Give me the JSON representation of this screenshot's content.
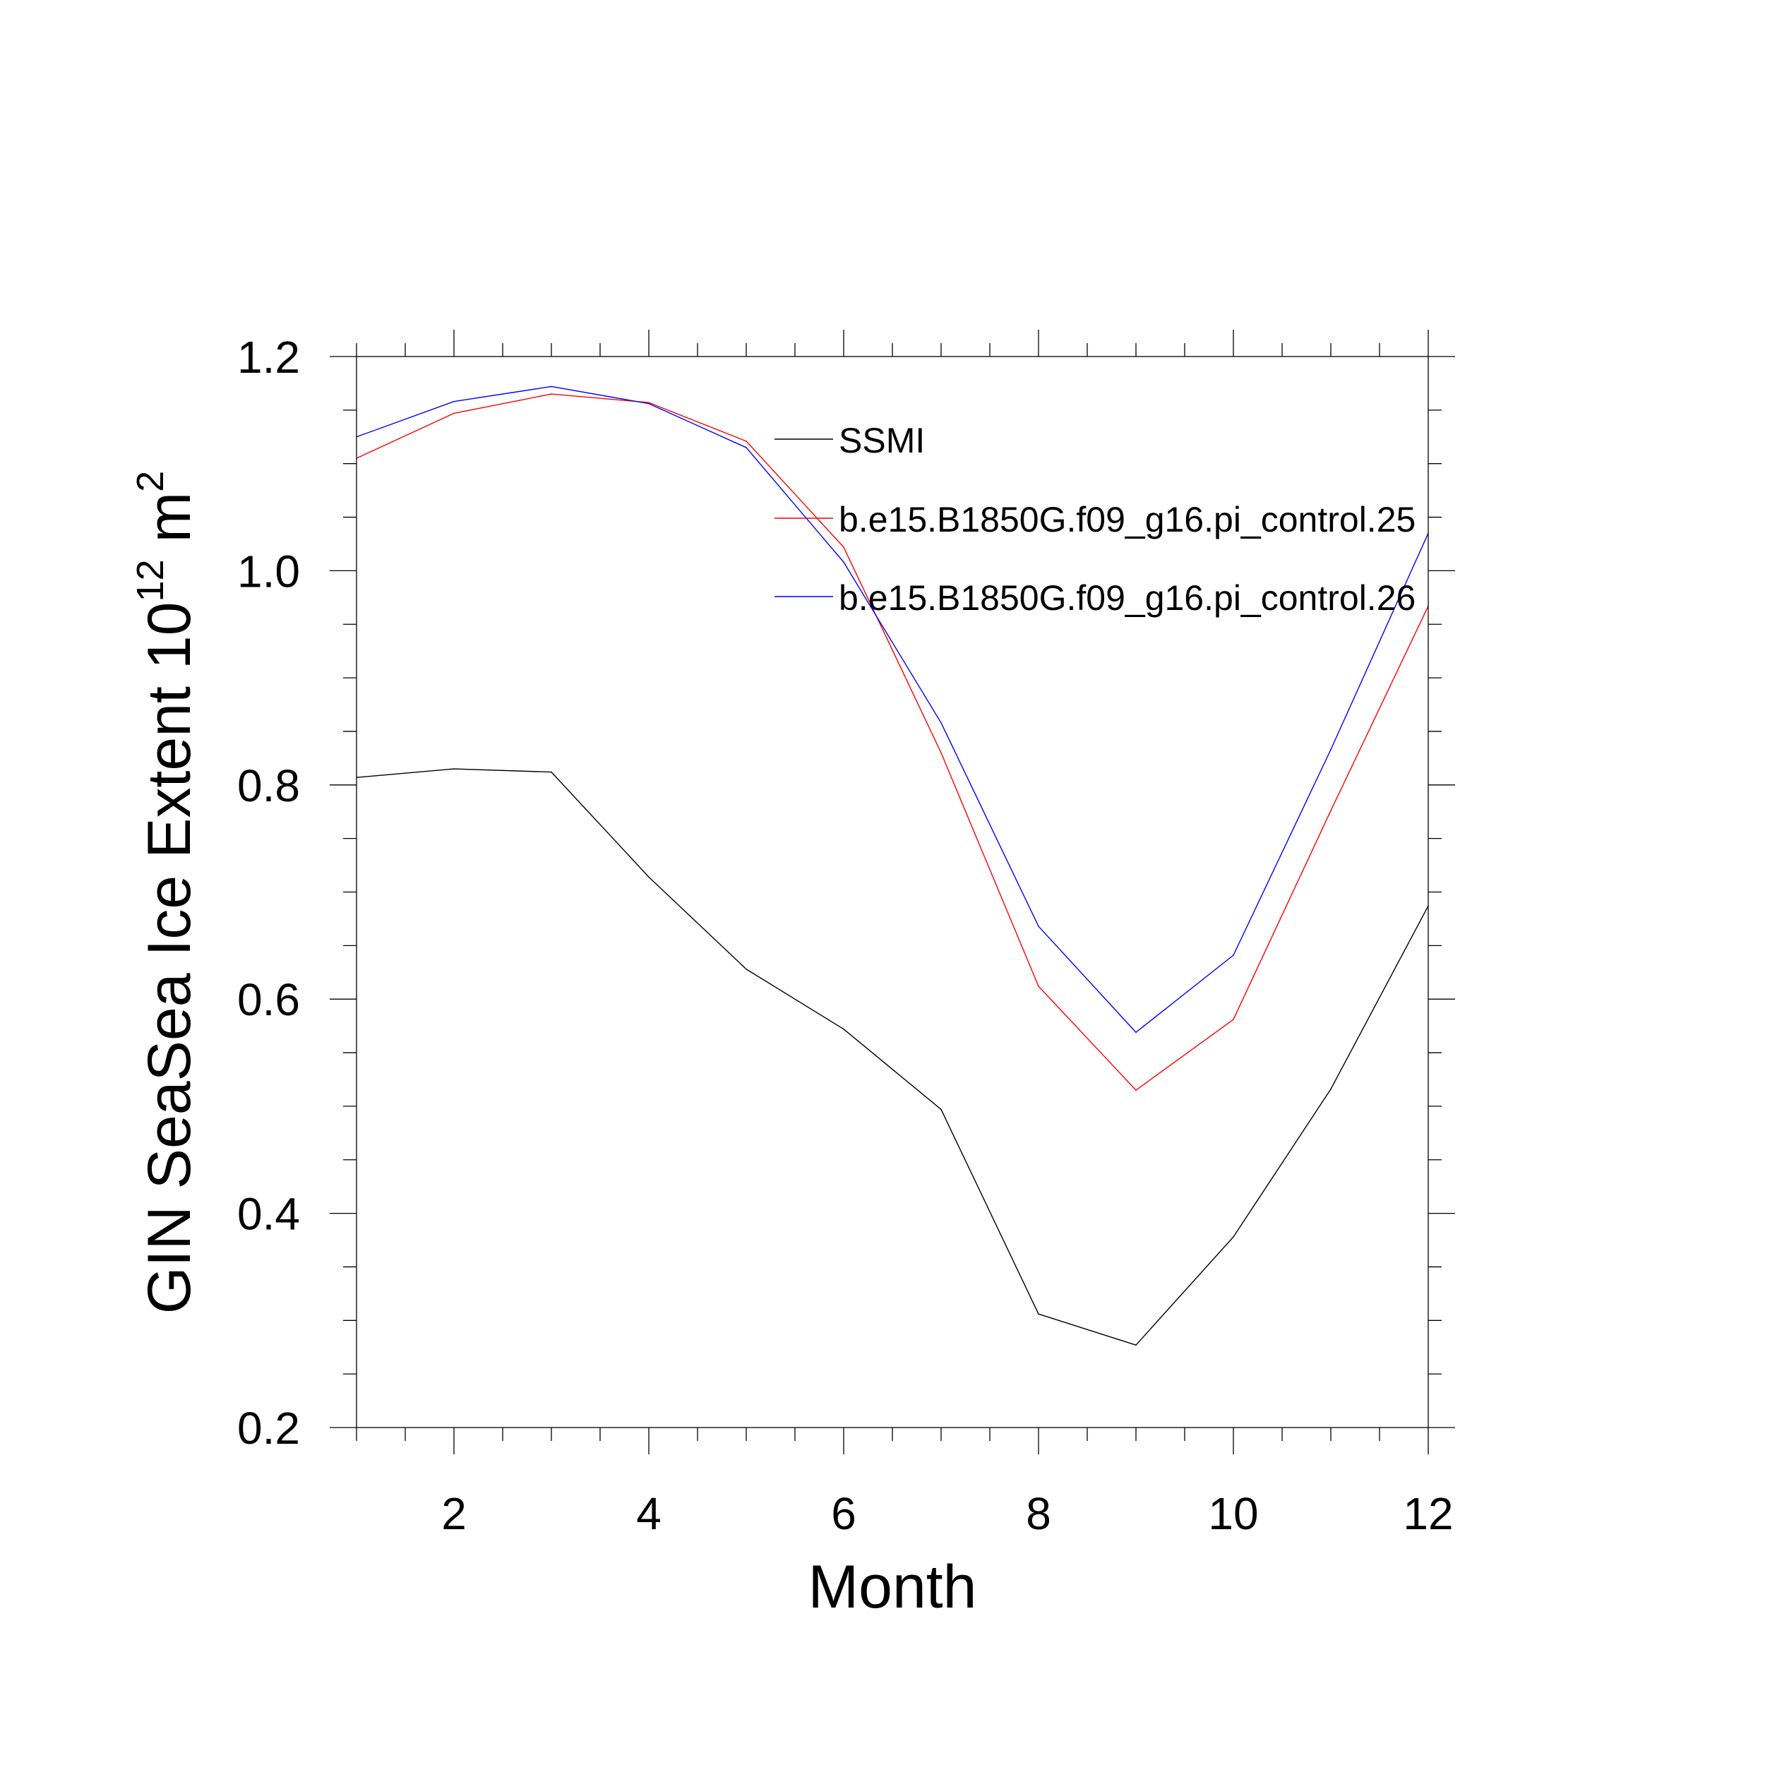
{
  "chart_data": {
    "type": "line",
    "xlabel": "Month",
    "ylabel": {
      "main": "GIN SeaSea Ice Extent 10",
      "sup1": "12",
      "mid": " m",
      "sup2": "2"
    },
    "xlim": [
      1,
      12
    ],
    "ylim": [
      0.2,
      1.2
    ],
    "xticks": [
      2,
      4,
      6,
      8,
      10,
      12
    ],
    "yticks": [
      0.2,
      0.4,
      0.6,
      0.8,
      1.0,
      1.2
    ],
    "ytick_labels": [
      "0.2",
      "0.4",
      "0.6",
      "0.8",
      "1.0",
      "1.2"
    ],
    "x": [
      1,
      2,
      3,
      4,
      5,
      6,
      7,
      8,
      9,
      10,
      11,
      12
    ],
    "grid": false,
    "legend_position": "top-right inside plot",
    "series": [
      {
        "name": "SSMI",
        "color": "#000000",
        "values": [
          0.807,
          0.815,
          0.812,
          0.714,
          0.628,
          0.572,
          0.497,
          0.306,
          0.277,
          0.378,
          0.516,
          0.687
        ]
      },
      {
        "name": "b.e15.B1850G.f09_g16.pi_control.25",
        "color": "#ff0000",
        "values": [
          1.105,
          1.147,
          1.165,
          1.157,
          1.121,
          1.022,
          0.83,
          0.612,
          0.515,
          0.581,
          0.776,
          0.967
        ]
      },
      {
        "name": "b.e15.B1850G.f09_g16.pi_control.26",
        "color": "#0000ff",
        "values": [
          1.125,
          1.158,
          1.172,
          1.156,
          1.115,
          1.008,
          0.858,
          0.668,
          0.569,
          0.641,
          0.833,
          1.035
        ]
      }
    ]
  }
}
